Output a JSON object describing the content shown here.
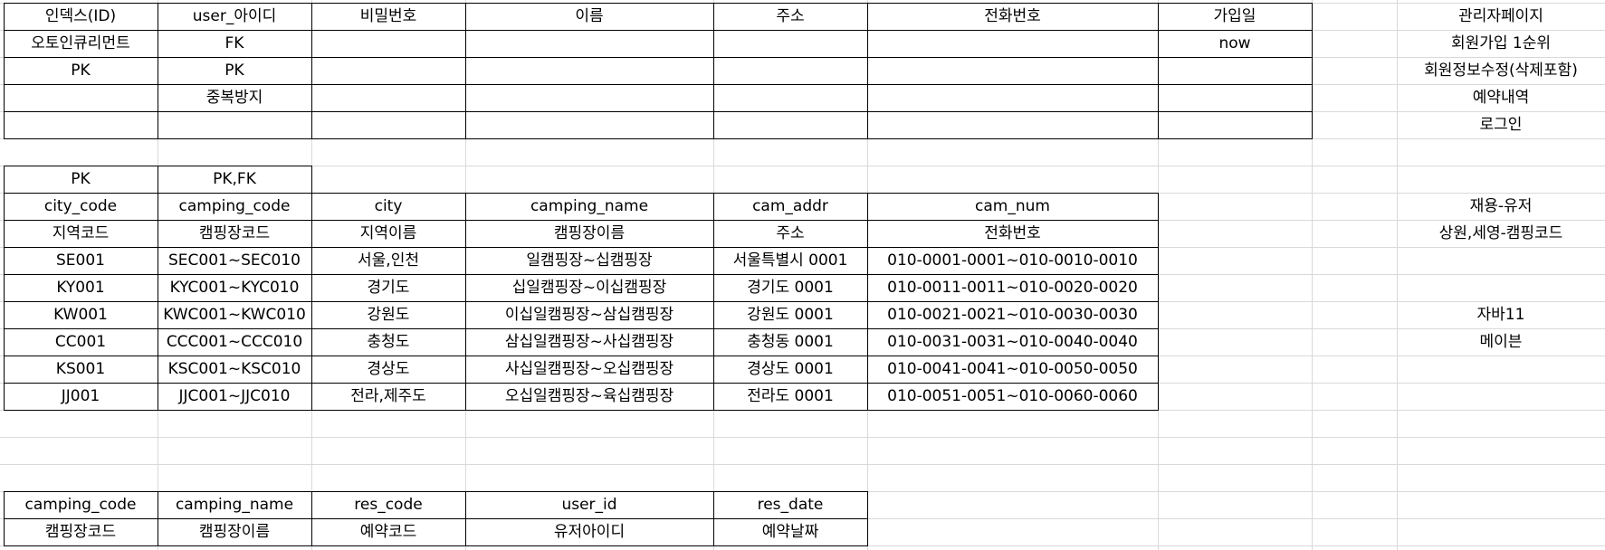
{
  "table_users": {
    "header": [
      "인덱스(ID)",
      "user_아이디",
      "비밀번호",
      "이름",
      "주소",
      "전화번호",
      "가입일"
    ],
    "rows": [
      [
        "오토인큐리먼트",
        "FK",
        "",
        "",
        "",
        "",
        "now"
      ],
      [
        "PK",
        "PK",
        "",
        "",
        "",
        "",
        ""
      ],
      [
        "",
        "중복방지",
        "",
        "",
        "",
        "",
        ""
      ],
      [
        "",
        "",
        "",
        "",
        "",
        "",
        ""
      ]
    ]
  },
  "admin_notes": [
    "관리자페이지",
    "회원가입 1순위",
    "회원정보수정(삭제포함)",
    "예약내역",
    "로그인"
  ],
  "table_camping": {
    "key_row": [
      "PK",
      "PK,FK"
    ],
    "header": [
      "city_code",
      "camping_code",
      "city",
      "camping_name",
      "cam_addr",
      "cam_num"
    ],
    "subheader": [
      "지역코드",
      "캠핑장코드",
      "지역이름",
      "캠핑장이름",
      "주소",
      "전화번호"
    ],
    "rows": [
      [
        "SE001",
        "SEC001~SEC010",
        "서울,인천",
        "일캠핑장~십캠핑장",
        "서울특별시 0001",
        "010-0001-0001~010-0010-0010"
      ],
      [
        "KY001",
        "KYC001~KYC010",
        "경기도",
        "십일캠핑장~이십캠핑장",
        "경기도 0001",
        "010-0011-0011~010-0020-0020"
      ],
      [
        "KW001",
        "KWC001~KWC010",
        "강원도",
        "이십일캠핑장~삼십캠핑장",
        "강원도 0001",
        "010-0021-0021~010-0030-0030"
      ],
      [
        "CC001",
        "CCC001~CCC010",
        "충청도",
        "삼십일캠핑장~사십캠핑장",
        "충청동 0001",
        "010-0031-0031~010-0040-0040"
      ],
      [
        "KS001",
        "KSC001~KSC010",
        "경상도",
        "사십일캠핑장~오십캠핑장",
        "경상도 0001",
        "010-0041-0041~010-0050-0050"
      ],
      [
        "JJ001",
        "JJC001~JJC010",
        "전라,제주도",
        "오십일캠핑장~육십캠핑장",
        "전라도 0001",
        "010-0051-0051~010-0060-0060"
      ]
    ]
  },
  "side_notes": [
    "재용-유저",
    "상원,세영-캠핑코드",
    "자바11",
    "메이븐"
  ],
  "table_reservation": {
    "header": [
      "camping_code",
      "camping_name",
      "res_code",
      "user_id",
      "res_date"
    ],
    "subheader": [
      "캠핑장코드",
      "캠핑장이름",
      "예약코드",
      "유저아이디",
      "예약날짜"
    ]
  }
}
